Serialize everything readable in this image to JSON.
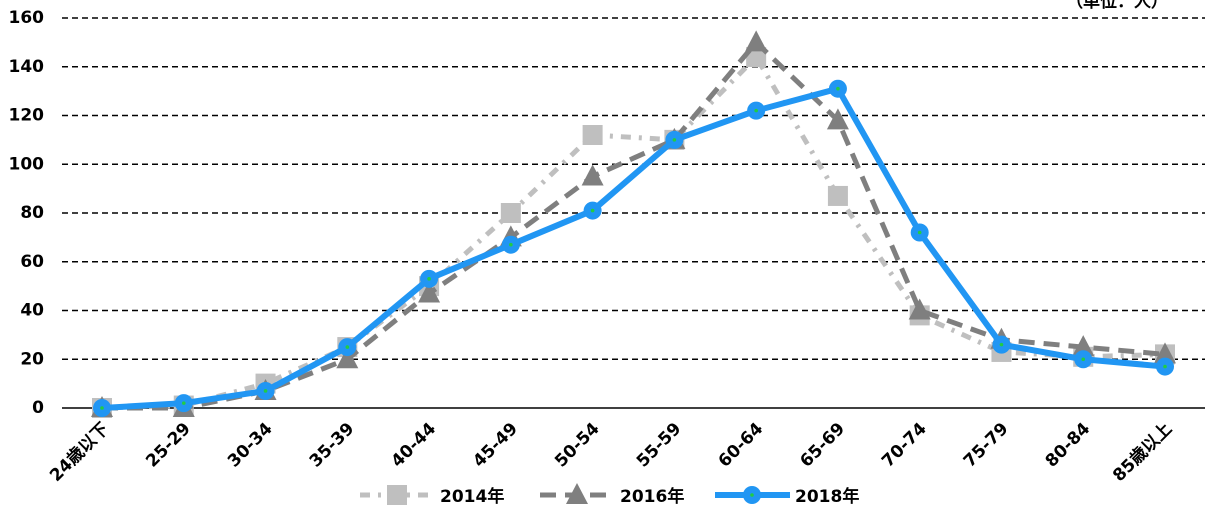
{
  "chart_data": {
    "type": "line",
    "unit_label": "（単位：人）",
    "categories": [
      "24歳以下",
      "25-29",
      "30-34",
      "35-39",
      "40-44",
      "45-49",
      "50-54",
      "55-59",
      "60-64",
      "65-69",
      "70-74",
      "75-79",
      "80-84",
      "85歳以上"
    ],
    "series": [
      {
        "name": "2014年",
        "color": "#bfbfbf",
        "marker": "square",
        "dash": "dash-dot",
        "values": [
          0,
          1,
          10,
          25,
          50,
          80,
          112,
          110,
          144,
          87,
          38,
          23,
          21,
          22
        ]
      },
      {
        "name": "2016年",
        "color": "#7f7f7f",
        "marker": "triangle",
        "dash": "dash",
        "values": [
          0,
          0,
          7,
          20,
          47,
          70,
          95,
          110,
          150,
          118,
          40,
          28,
          25,
          22
        ]
      },
      {
        "name": "2018年",
        "color": "#2196f3",
        "marker": "circle",
        "dash": "solid",
        "values": [
          0,
          2,
          7,
          25,
          53,
          67,
          81,
          110,
          122,
          131,
          72,
          26,
          20,
          17
        ]
      }
    ],
    "ylim": [
      0,
      160
    ],
    "yticks": [
      0,
      20,
      40,
      60,
      80,
      100,
      120,
      140,
      160
    ],
    "grid": true,
    "legend": "bottom"
  }
}
